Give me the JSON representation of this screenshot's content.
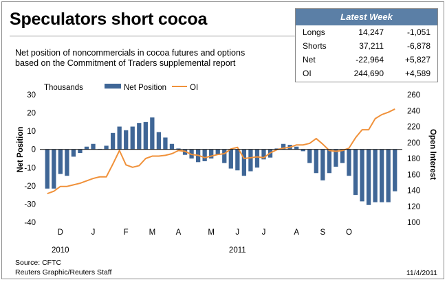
{
  "title": "Speculators short cocoa",
  "subtitle_lines": [
    "Net position of noncommercials in cocoa futures and options",
    "based on the Commitment of Traders supplemental report"
  ],
  "latest_week": {
    "heading": "Latest Week",
    "rows": [
      {
        "label": "Longs",
        "value": "14,247",
        "change": "-1,051"
      },
      {
        "label": "Shorts",
        "value": "37,211",
        "change": "-6,878"
      },
      {
        "label": "Net",
        "value": "-22,964",
        "change": "+5,827"
      },
      {
        "label": "OI",
        "value": "244,690",
        "change": "+4,589"
      }
    ]
  },
  "chart_data": {
    "type": "bar+line",
    "units_label": "Thousands",
    "y_left_label": "Net Position",
    "y_right_label": "Open Interest",
    "y_left_range": [
      -40,
      30
    ],
    "y_left_ticks": [
      "30",
      "20",
      "10",
      "0",
      "-10",
      "-20",
      "-30",
      "-40"
    ],
    "y_right_range": [
      100,
      260
    ],
    "y_right_ticks": [
      "260",
      "240",
      "220",
      "200",
      "180",
      "160",
      "140",
      "120",
      "100"
    ],
    "x_month_labels": [
      "D",
      "J",
      "F",
      "M",
      "A",
      "M",
      "J",
      "J",
      "A",
      "S",
      "O"
    ],
    "x_year_labels": [
      "2010",
      "2011"
    ],
    "grid": "none",
    "legend_position": "top",
    "colors": {
      "bars": "#3f6696",
      "line": "#f0913a"
    },
    "series": [
      {
        "name": "Net Position",
        "type": "bar",
        "axis": "left",
        "values": [
          -21.5,
          -21.5,
          -13.5,
          -14.5,
          -4,
          -2,
          1.5,
          3,
          0.3,
          2,
          9,
          12.5,
          10.5,
          12.5,
          14.5,
          15,
          17.5,
          9.5,
          6.5,
          3,
          0.5,
          -3,
          -5,
          -7,
          -6.5,
          -5,
          -3,
          -7.5,
          -10.5,
          -11.5,
          -14.5,
          -12,
          -10,
          -5.5,
          -4.5,
          0.5,
          3,
          2.5,
          1.5,
          -1,
          -7.5,
          -13,
          -17,
          -13,
          -9.5,
          -7.5,
          -14.5,
          -25,
          -28.5,
          -30.5,
          -29,
          -29,
          -29,
          -23
        ]
      },
      {
        "name": "OI",
        "type": "line",
        "axis": "right",
        "values": [
          136,
          139,
          145,
          145,
          147,
          149,
          152,
          155,
          157,
          157,
          173,
          190,
          172,
          169,
          171,
          180,
          183,
          183,
          184,
          186,
          190,
          189,
          185,
          184,
          181,
          183,
          185,
          186,
          192,
          194,
          180,
          181,
          182,
          181,
          187,
          191,
          193,
          194,
          197,
          197,
          199,
          205,
          198,
          190,
          189,
          190,
          193,
          206,
          216,
          216,
          230,
          235,
          238,
          242
        ]
      }
    ]
  },
  "source": "Source: CFTC",
  "credit": "Reuters Graphic/Reuters Staff",
  "date": "11/4/2011"
}
